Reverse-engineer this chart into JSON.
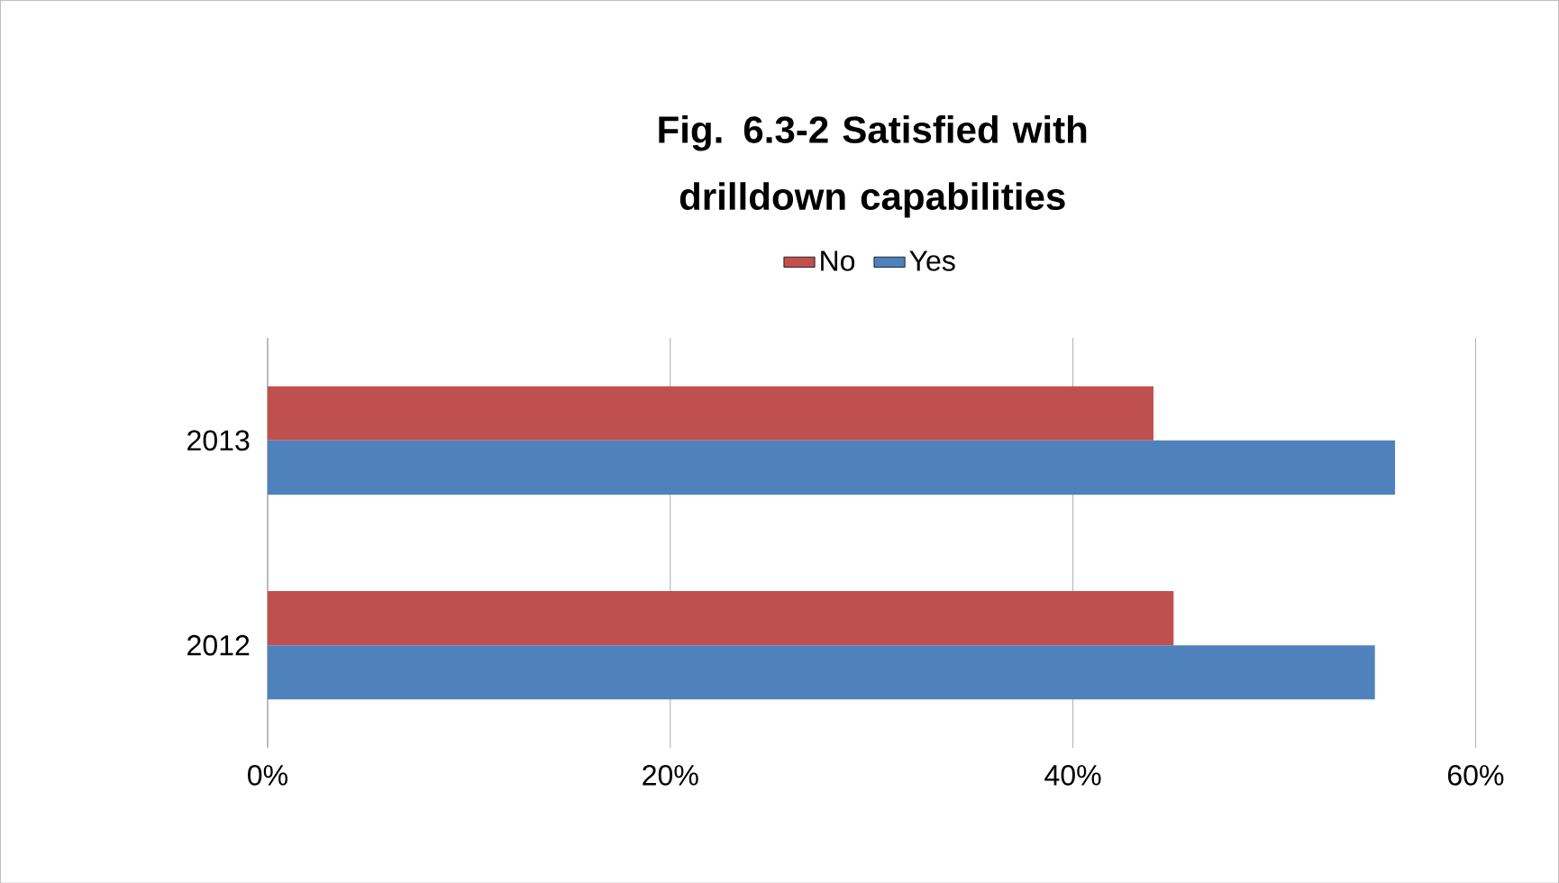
{
  "chart_data": {
    "type": "bar",
    "orientation": "horizontal",
    "title": "Fig. 6.3-2 Satisfied with drilldown capabilities",
    "categories": [
      "2013",
      "2012"
    ],
    "series": [
      {
        "name": "No",
        "color": "#c0504d",
        "values": [
          44,
          45
        ]
      },
      {
        "name": "Yes",
        "color": "#4f81bd",
        "values": [
          56,
          55
        ]
      }
    ],
    "xlim": [
      0,
      60
    ],
    "xticks": [
      {
        "value": 0,
        "label": "0%"
      },
      {
        "value": 20,
        "label": "20%"
      },
      {
        "value": 40,
        "label": "40%"
      },
      {
        "value": 60,
        "label": "60%"
      }
    ],
    "grid": "x",
    "legend": "top"
  }
}
